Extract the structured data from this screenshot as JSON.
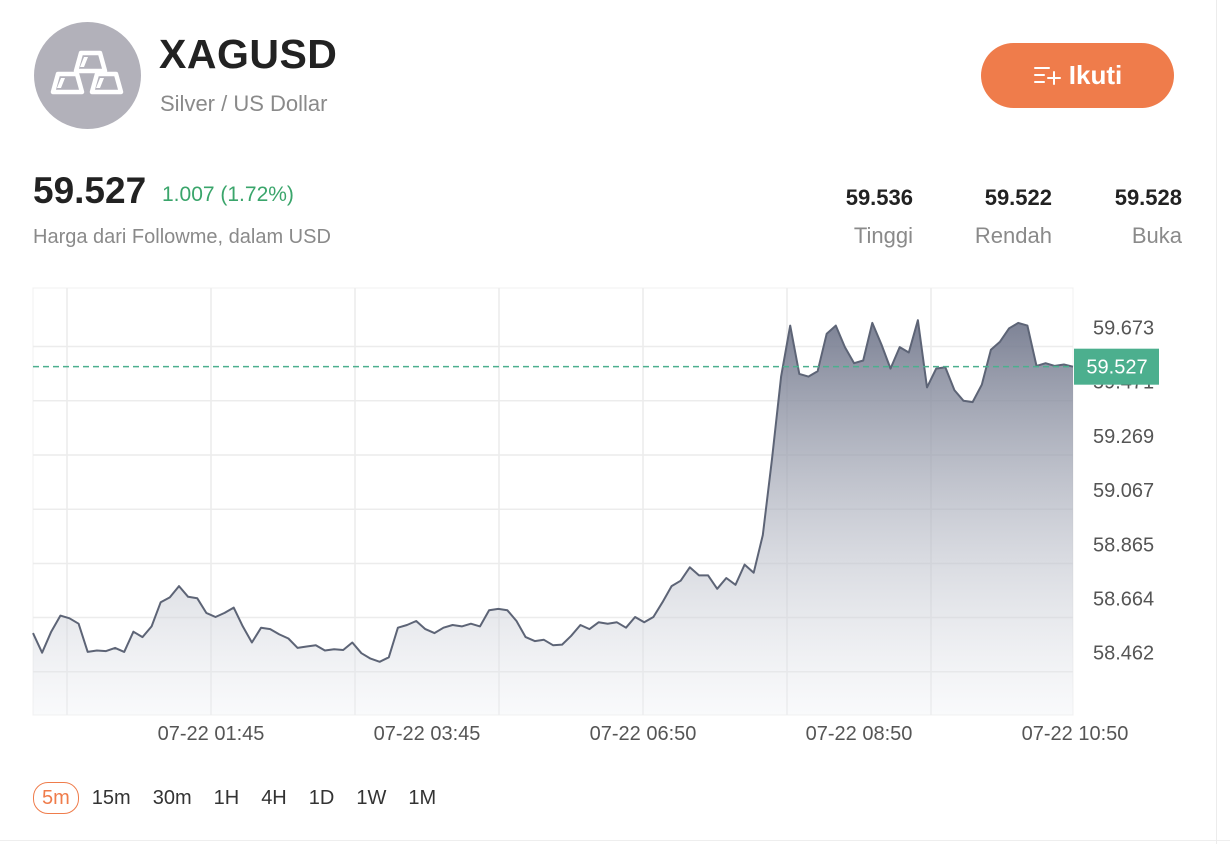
{
  "header": {
    "symbol": "XAGUSD",
    "name": "Silver / US Dollar",
    "follow_label": "Ikuti"
  },
  "quote": {
    "price": "59.527",
    "change": "1.007 (1.72%)",
    "source": "Harga dari Followme, dalam USD"
  },
  "stats": [
    {
      "value": "59.536",
      "label": "Tinggi"
    },
    {
      "value": "59.522",
      "label": "Rendah"
    },
    {
      "value": "59.528",
      "label": "Buka"
    }
  ],
  "timeframes": [
    "5m",
    "15m",
    "30m",
    "1H",
    "4H",
    "1D",
    "1W",
    "1M"
  ],
  "active_timeframe": "5m",
  "colors": {
    "accent": "#ef7c4b",
    "up": "#3aa56b",
    "line": "#5d6476",
    "price_tag": "#4caf8e"
  },
  "chart_data": {
    "type": "area",
    "x_tick_labels": [
      "07-22 01:45",
      "07-22 03:45",
      "07-22 06:50",
      "07-22 08:50",
      "07-22 10:50"
    ],
    "y_tick_labels": [
      "59.673",
      "59.471",
      "59.269",
      "59.067",
      "58.865",
      "58.664",
      "58.462"
    ],
    "ylim": [
      58.23,
      59.82
    ],
    "current_price": 59.527,
    "current_price_label": "59.527",
    "grid": true,
    "series": [
      {
        "values": [
          58.535,
          58.462,
          58.54,
          58.6,
          58.59,
          58.57,
          58.465,
          58.47,
          58.468,
          58.48,
          58.465,
          58.54,
          58.52,
          58.56,
          58.65,
          58.668,
          58.71,
          58.67,
          58.665,
          58.61,
          58.595,
          58.61,
          58.63,
          58.56,
          58.5,
          58.555,
          58.55,
          58.53,
          58.515,
          58.48,
          58.485,
          58.49,
          58.47,
          58.475,
          58.472,
          58.5,
          58.46,
          58.44,
          58.428,
          58.445,
          58.555,
          58.565,
          58.58,
          58.55,
          58.535,
          58.555,
          58.565,
          58.56,
          58.57,
          58.56,
          58.62,
          58.625,
          58.62,
          58.58,
          58.52,
          58.505,
          58.51,
          58.49,
          58.492,
          58.525,
          58.565,
          58.55,
          58.575,
          58.57,
          58.575,
          58.555,
          58.595,
          58.575,
          58.595,
          58.65,
          58.71,
          58.73,
          58.78,
          58.75,
          58.75,
          58.7,
          58.74,
          58.715,
          58.79,
          58.76,
          58.9,
          59.18,
          59.49,
          59.68,
          59.5,
          59.49,
          59.51,
          59.65,
          59.68,
          59.6,
          59.54,
          59.55,
          59.69,
          59.61,
          59.52,
          59.6,
          59.58,
          59.7,
          59.45,
          59.52,
          59.525,
          59.44,
          59.4,
          59.395,
          59.46,
          59.59,
          59.62,
          59.67,
          59.69,
          59.68,
          59.53,
          59.54,
          59.53,
          59.535,
          59.527
        ]
      }
    ]
  }
}
